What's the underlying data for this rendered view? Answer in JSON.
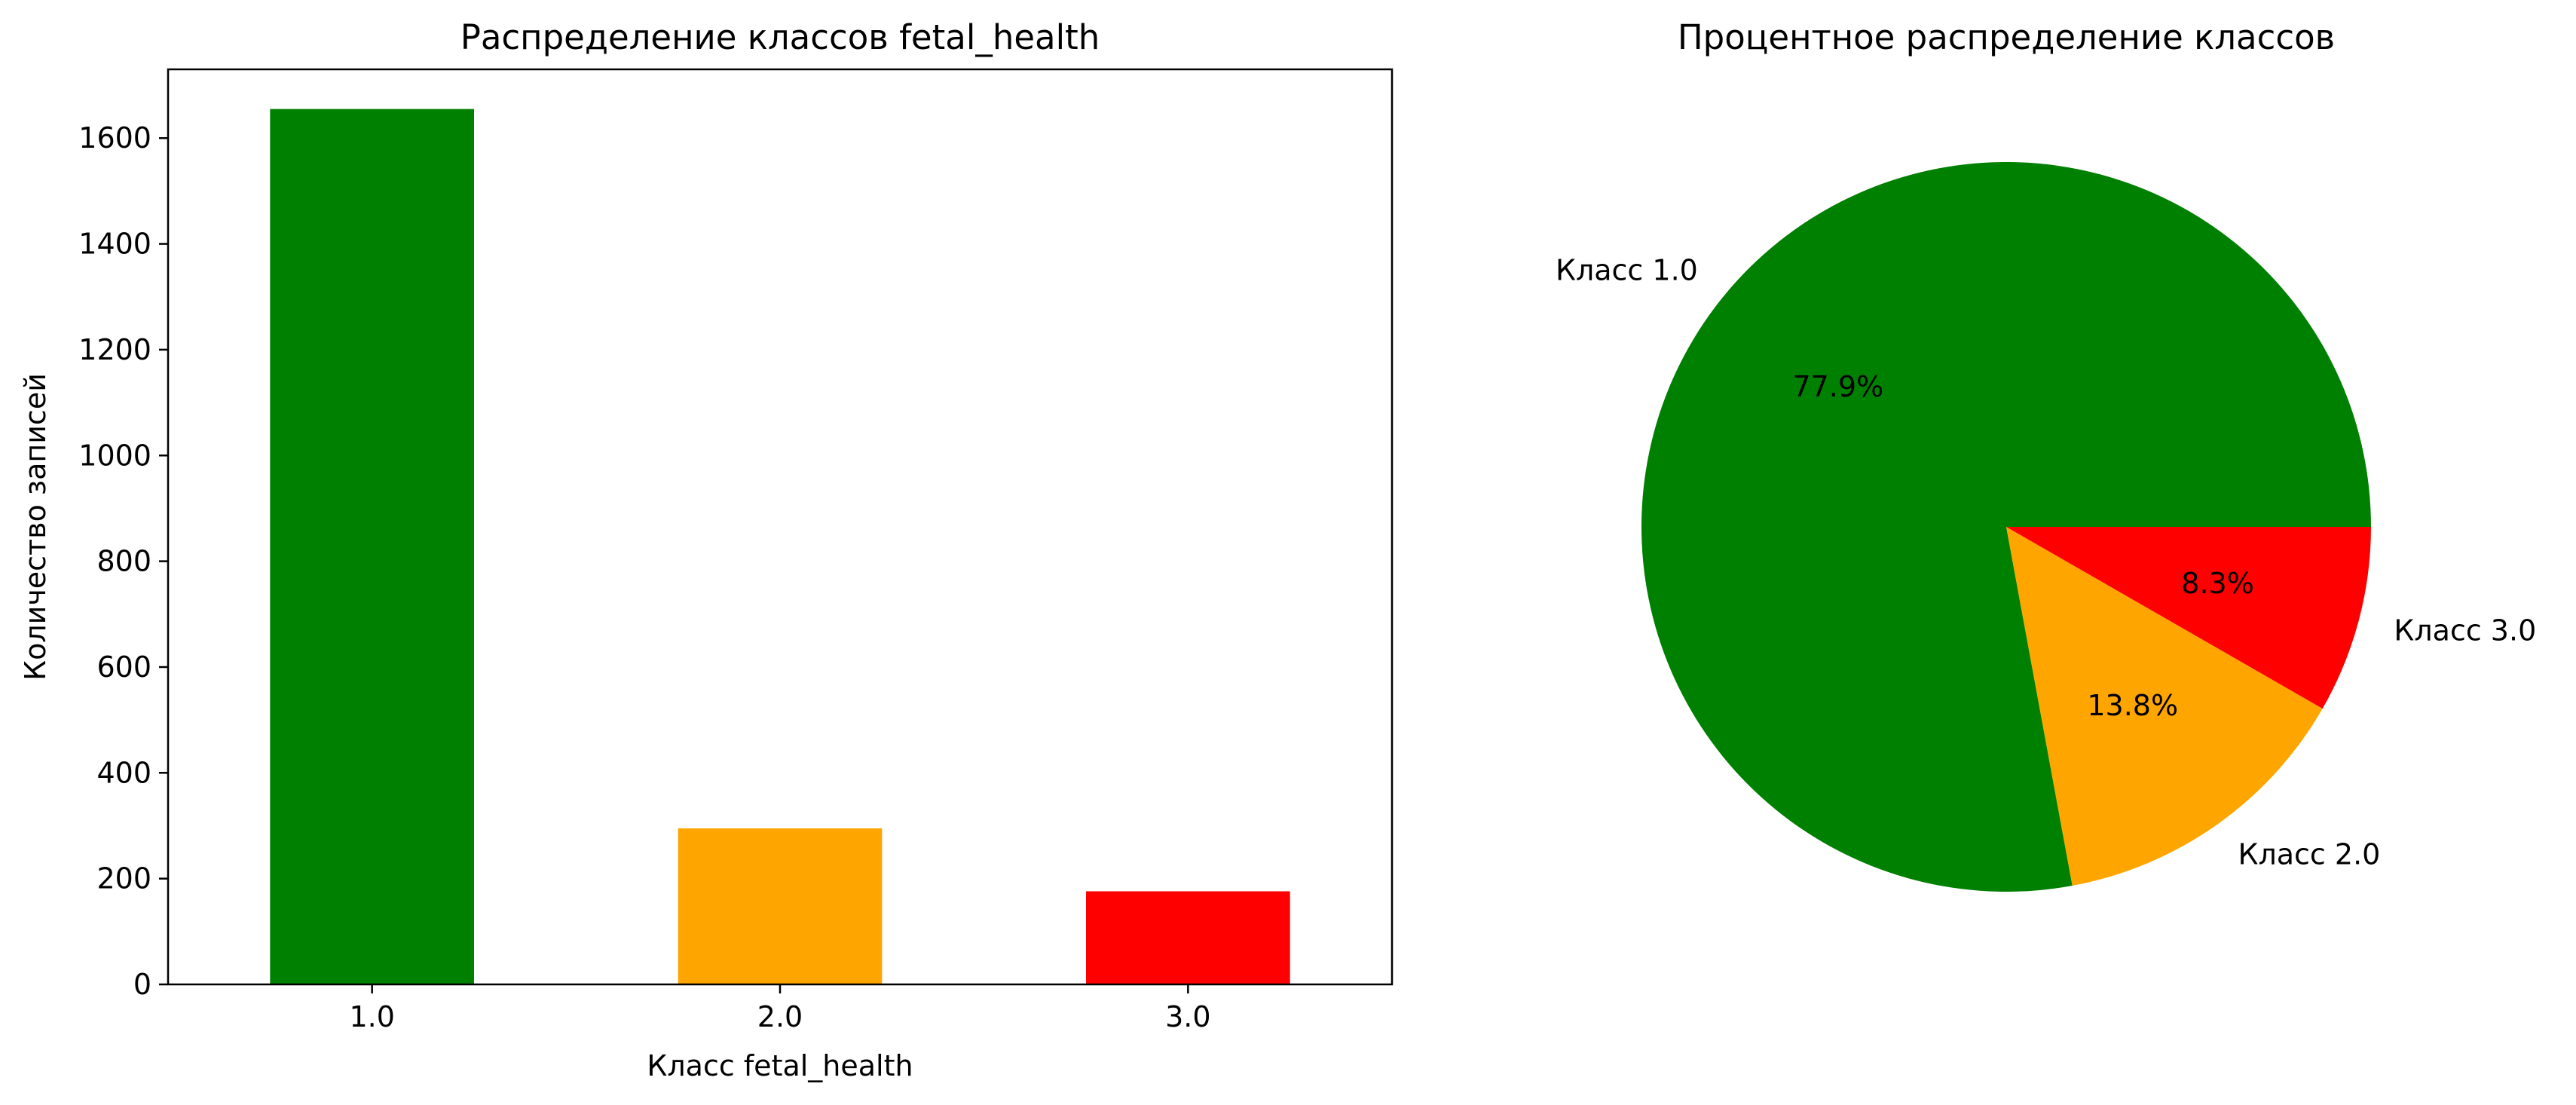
{
  "chart_data": [
    {
      "type": "bar",
      "title": "Распределение классов fetal_health",
      "xlabel": "Класс fetal_health",
      "ylabel": "Количество записей",
      "categories": [
        "1.0",
        "2.0",
        "3.0"
      ],
      "values": [
        1655,
        295,
        176
      ],
      "colors": [
        "#008000",
        "#ffa500",
        "#ff0000"
      ],
      "ylim": [
        0,
        1730
      ],
      "yticks": [
        0,
        200,
        400,
        600,
        800,
        1000,
        1200,
        1400,
        1600
      ],
      "grid": false
    },
    {
      "type": "pie",
      "title": "Процентное распределение классов",
      "labels": [
        "Класс 1.0",
        "Класс 2.0",
        "Класс 3.0"
      ],
      "values": [
        77.9,
        13.8,
        8.3
      ],
      "pct_labels": [
        "77.9%",
        "13.8%",
        "8.3%"
      ],
      "colors": [
        "#008000",
        "#ffa500",
        "#ff0000"
      ]
    }
  ]
}
